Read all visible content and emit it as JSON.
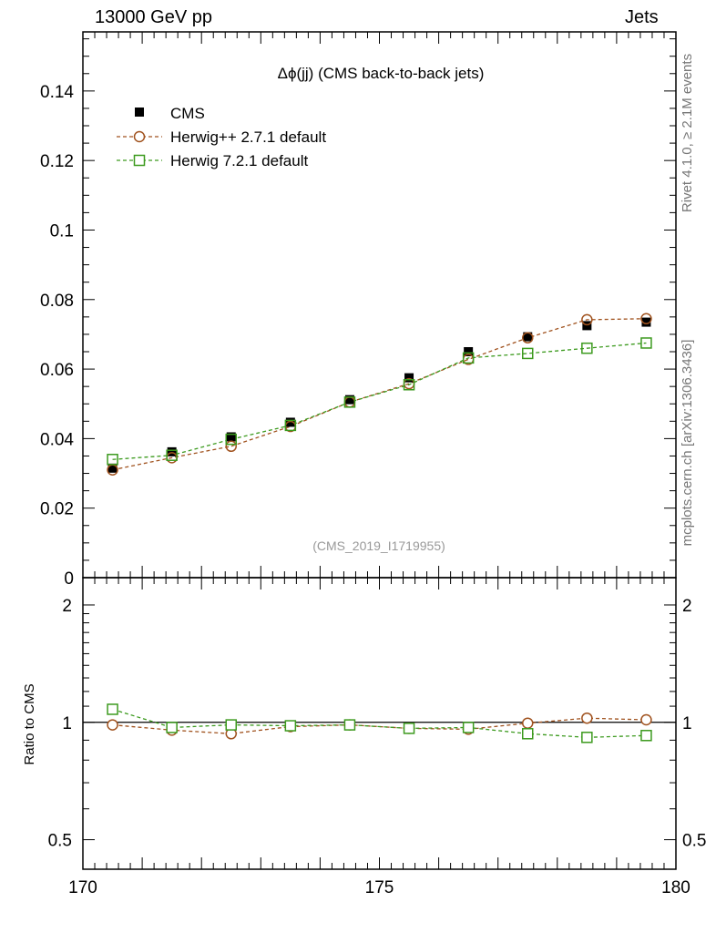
{
  "header": {
    "left": "13000 GeV pp",
    "right": "Jets"
  },
  "side_labels": {
    "rivet": "Rivet 4.1.0, ≥ 2.1M events",
    "mcplots": "mcplots.cern.ch [arXiv:1306.3436]"
  },
  "chart_data": {
    "type": "line",
    "title": "Δϕ(jj) (CMS back-to-back jets)",
    "analysis_tag": "(CMS_2019_I1719955)",
    "xlim": [
      170,
      180
    ],
    "x_ticks": [
      "170",
      "175",
      "180"
    ],
    "x": [
      170.5,
      171.5,
      172.5,
      173.5,
      174.5,
      175.5,
      176.5,
      177.5,
      178.5,
      179.5
    ],
    "main_panel": {
      "ylim": [
        0,
        0.157
      ],
      "y_ticks": [
        "0",
        "0.02",
        "0.04",
        "0.06",
        "0.08",
        "0.1",
        "0.12",
        "0.14"
      ],
      "y_tick_values": [
        0,
        0.02,
        0.04,
        0.06,
        0.08,
        0.1,
        0.12,
        0.14
      ],
      "series": [
        {
          "name": "CMS",
          "style": "data",
          "color": "#000000",
          "values": [
            0.0315,
            0.0362,
            0.0405,
            0.0447,
            0.0512,
            0.0575,
            0.065,
            0.0693,
            0.0725,
            0.0735
          ]
        },
        {
          "name": "Herwig++ 2.7.1 default",
          "style": "circle-dashed",
          "color": "#a0521e",
          "values": [
            0.031,
            0.0345,
            0.0378,
            0.0435,
            0.0505,
            0.0558,
            0.0628,
            0.069,
            0.0742,
            0.0745
          ]
        },
        {
          "name": "Herwig 7.2.1 default",
          "style": "square-dashed",
          "color": "#3c9a1e",
          "values": [
            0.034,
            0.0352,
            0.0398,
            0.0438,
            0.0505,
            0.0555,
            0.0632,
            0.0645,
            0.066,
            0.0675
          ]
        }
      ]
    },
    "ratio_panel": {
      "ylabel": "Ratio to CMS",
      "y_ticks": [
        "0.5",
        "1",
        "2"
      ],
      "y_tick_values": [
        0.5,
        1,
        2
      ],
      "scale": "log",
      "ylim": [
        0.42,
        2.35
      ],
      "series": [
        {
          "name": "Herwig++ 2.7.1 default",
          "color": "#a0521e",
          "values": [
            0.985,
            0.955,
            0.935,
            0.975,
            0.985,
            0.965,
            0.96,
            0.995,
            1.025,
            1.015
          ]
        },
        {
          "name": "Herwig 7.2.1 default",
          "color": "#3c9a1e",
          "values": [
            1.08,
            0.97,
            0.985,
            0.98,
            0.985,
            0.965,
            0.97,
            0.935,
            0.915,
            0.925
          ]
        }
      ]
    }
  }
}
